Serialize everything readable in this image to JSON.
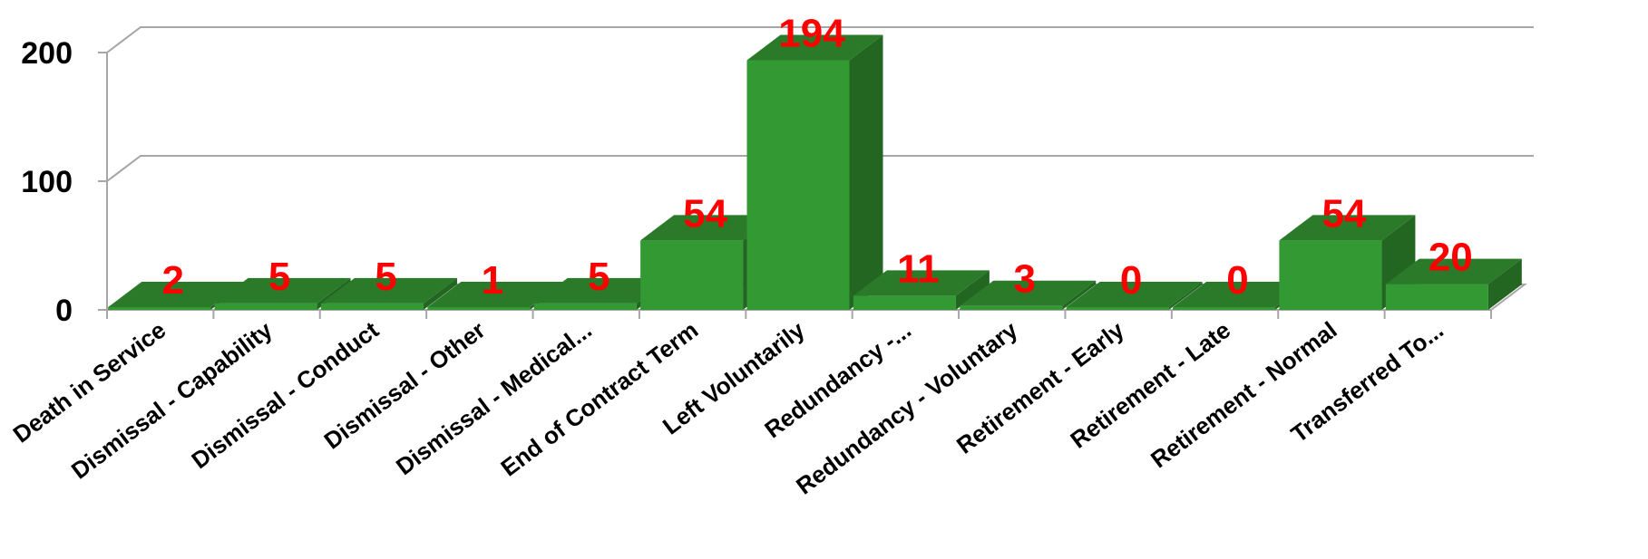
{
  "chart_data": {
    "type": "bar",
    "style": "3d-column",
    "categories": [
      "Death in Service",
      "Dismissal - Capability",
      "Dismissal - Conduct",
      "Dismissal - Other",
      "Dismissal - Medical...",
      "End of Contract Term",
      "Left Voluntarily",
      "Redundancy -...",
      "Redundancy - Voluntary",
      "Retirement - Early",
      "Retirement - Late",
      "Retirement - Normal",
      "Transferred To..."
    ],
    "values": [
      2,
      5,
      5,
      1,
      5,
      54,
      194,
      11,
      3,
      0,
      0,
      54,
      20
    ],
    "data_labels": [
      "2",
      "5",
      "5",
      "1",
      "5",
      "54",
      "194",
      "11",
      "3",
      "0",
      "0",
      "54",
      "20"
    ],
    "yticks": [
      0,
      100,
      200
    ],
    "ytick_labels": [
      "0",
      "100",
      "200"
    ],
    "ylim": [
      0,
      200
    ],
    "grid": true,
    "legend": "none",
    "colors": {
      "bar_front": "#339933",
      "bar_top": "#2a7a2a",
      "bar_side": "#226622",
      "data_label": "#ff0000",
      "gridline": "#a6a6a6"
    }
  }
}
